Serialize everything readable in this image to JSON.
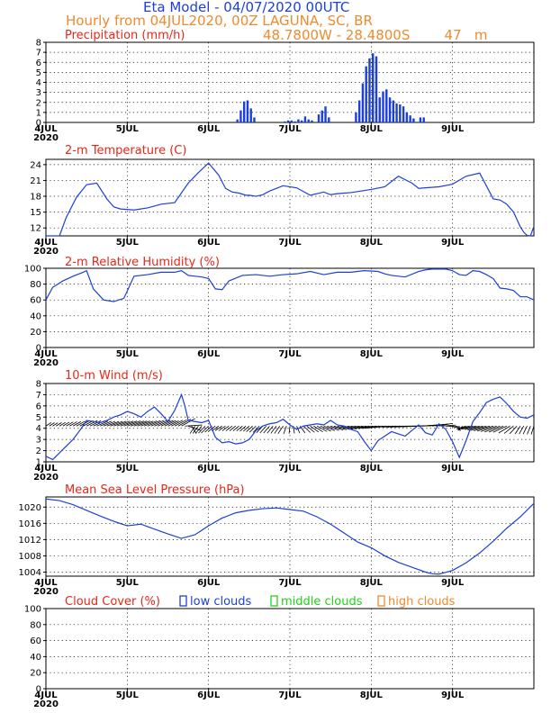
{
  "header": {
    "line1": "Eta Model - 04/07/2020 00UTC",
    "line2": "Hourly from 04JUL2020, 00Z  LAGUNA,    SC, BR",
    "line3": "48.7800W - 28.4800S        47   m"
  },
  "colors": {
    "blue": "#1c3fd9",
    "red": "#e8261a",
    "orange": "#ee8a2e",
    "green": "#22d21a",
    "purple": "#b25bd3"
  },
  "x_labels": [
    "4JUL",
    "5JUL",
    "6JUL",
    "7JUL",
    "8JUL",
    "9JUL"
  ],
  "year_label": "2020",
  "chart_data": [
    {
      "type": "bar",
      "title": "Precipitation (mm/h)",
      "x_unit": "hours since 04JUL2020 00Z",
      "ylim": [
        0,
        8
      ],
      "yticks": [
        0,
        1,
        2,
        3,
        4,
        5,
        6,
        7,
        8
      ],
      "x": [
        56,
        57,
        58,
        59,
        60,
        61,
        70,
        71,
        72,
        73,
        74,
        75,
        76,
        77,
        78,
        80,
        81,
        82,
        83,
        91,
        92,
        93,
        94,
        95,
        96,
        97,
        98,
        99,
        100,
        101,
        102,
        103,
        104,
        105,
        106,
        107,
        108,
        110,
        111
      ],
      "values": [
        0.3,
        1.2,
        2.1,
        2.2,
        1.4,
        0.5,
        0.1,
        0.2,
        0.2,
        0.1,
        0.3,
        0.2,
        0.6,
        0.3,
        0.2,
        0.8,
        1.2,
        1.6,
        0.5,
        1.0,
        2.2,
        3.9,
        5.6,
        6.4,
        6.9,
        6.6,
        2.5,
        3.1,
        3.3,
        2.5,
        2.2,
        1.9,
        1.8,
        1.6,
        1.0,
        0.7,
        0.4,
        0.5,
        0.5
      ]
    },
    {
      "type": "line",
      "title": "2-m Temperature (C)",
      "ylim": [
        10.5,
        25
      ],
      "yticks": [
        12,
        15,
        18,
        21,
        24
      ],
      "x": [
        0,
        4,
        6,
        9,
        12,
        15,
        18,
        20,
        22,
        26,
        30,
        34,
        38,
        42,
        45,
        48,
        51,
        53,
        55,
        57,
        59,
        60,
        62,
        64,
        66,
        70,
        74,
        78,
        82,
        84,
        86,
        88,
        90,
        93,
        96,
        100,
        104,
        108,
        110,
        112,
        116,
        120,
        124,
        128,
        132,
        134,
        136,
        138,
        140,
        141,
        142,
        143,
        144
      ],
      "values": [
        10.5,
        10.5,
        14,
        17.8,
        20.2,
        20.5,
        17.5,
        16,
        15.6,
        15.4,
        15.8,
        16.5,
        16.8,
        20.5,
        22.5,
        24.3,
        22,
        19.5,
        18.8,
        18.6,
        18.2,
        18.2,
        18,
        18.3,
        19,
        20,
        19.6,
        18.2,
        18.8,
        18.3,
        18.5,
        18.6,
        18.7,
        19,
        19.3,
        19.8,
        21.8,
        20.5,
        19.5,
        19.6,
        19.8,
        20.3,
        21.8,
        22.4,
        17.5,
        17.3,
        16.5,
        15,
        12.2,
        11.2,
        10.6,
        10.5,
        12.3
      ]
    },
    {
      "type": "line",
      "title": "2-m Relative Humidity (%)",
      "ylim": [
        0,
        100
      ],
      "yticks": [
        0,
        20,
        40,
        60,
        80,
        100
      ],
      "x": [
        0,
        2,
        5,
        8,
        11,
        12,
        14,
        17,
        20,
        23,
        26,
        30,
        34,
        38,
        40,
        42,
        44,
        46,
        48,
        50,
        52,
        54,
        58,
        62,
        66,
        70,
        74,
        78,
        82,
        86,
        90,
        94,
        98,
        100,
        102,
        106,
        110,
        112,
        114,
        118,
        120,
        122,
        124,
        126,
        128,
        130,
        132,
        134,
        136,
        138,
        140,
        142,
        144
      ],
      "values": [
        60,
        76,
        84,
        90,
        95,
        97,
        74,
        60,
        58,
        62,
        90,
        92,
        95,
        95,
        97,
        91,
        90,
        89,
        87,
        74,
        73,
        84,
        91,
        92,
        90,
        92,
        93,
        96,
        92,
        95,
        95,
        97,
        96,
        93,
        91,
        89,
        96,
        98,
        99,
        99,
        97,
        92,
        91,
        97,
        96,
        92,
        87,
        75,
        74,
        72,
        64,
        64,
        60
      ]
    },
    {
      "type": "line",
      "title": "10-m Wind (m/s)",
      "ylim": [
        1,
        8
      ],
      "yticks": [
        1,
        2,
        3,
        4,
        5,
        6,
        7,
        8
      ],
      "series": [
        {
          "name": "wind speed",
          "x": [
            0,
            2,
            4,
            6,
            8,
            10,
            12,
            14,
            16,
            18,
            20,
            22,
            24,
            26,
            28,
            30,
            32,
            34,
            36,
            38,
            40,
            41,
            42,
            44,
            46,
            48,
            50,
            52,
            54,
            56,
            58,
            60,
            62,
            64,
            66,
            68,
            70,
            72,
            74,
            76,
            78,
            80,
            82,
            84,
            86,
            88,
            90,
            92,
            94,
            96,
            98,
            100,
            102,
            104,
            106,
            108,
            110,
            112,
            114,
            116,
            118,
            120,
            122,
            124,
            126,
            128,
            130,
            132,
            134,
            136,
            138,
            140,
            142,
            144
          ],
          "values": [
            1.5,
            1.2,
            1.8,
            2.4,
            3.0,
            3.8,
            4.7,
            4.6,
            4.5,
            4.7,
            5.0,
            5.2,
            5.5,
            5.3,
            5.0,
            5.5,
            5.9,
            5.3,
            4.6,
            5.6,
            7.0,
            6.0,
            4.7,
            4.6,
            4.5,
            4.7,
            3.2,
            2.7,
            2.8,
            2.6,
            2.7,
            3.0,
            3.8,
            4.2,
            4.4,
            4.5,
            4.8,
            4.3,
            3.9,
            4.2,
            4.3,
            4.4,
            4.3,
            4.7,
            4.3,
            4.2,
            3.9,
            3.7,
            2.8,
            2.0,
            2.9,
            3.3,
            3.7,
            3.5,
            3.3,
            3.8,
            4.3,
            3.6,
            3.4,
            4.4,
            3.9,
            2.8,
            1.4,
            2.9,
            4.6,
            5.4,
            6.3,
            6.6,
            6.8,
            6.2,
            5.5,
            5.0,
            4.9,
            5.2
          ]
        },
        {
          "name": "wind direction (degrees, from)",
          "x": [
            0,
            10,
            18,
            26,
            34,
            40,
            44,
            48,
            52,
            56,
            62,
            70,
            76,
            84,
            90,
            100,
            108,
            116,
            120,
            124,
            126,
            132,
            136,
            140,
            144
          ],
          "values": [
            40,
            45,
            55,
            55,
            50,
            45,
            200,
            210,
            220,
            215,
            210,
            200,
            150,
            120,
            110,
            100,
            90,
            70,
            120,
            240,
            250,
            240,
            230,
            200,
            190
          ]
        }
      ]
    },
    {
      "type": "line",
      "title": "Mean Sea Level Pressure (hPa)",
      "ylim": [
        1003,
        1022.5
      ],
      "yticks": [
        1004,
        1008,
        1012,
        1016,
        1020
      ],
      "x": [
        0,
        4,
        8,
        12,
        16,
        20,
        24,
        28,
        32,
        36,
        40,
        44,
        48,
        52,
        56,
        60,
        64,
        68,
        72,
        76,
        80,
        84,
        88,
        92,
        96,
        100,
        104,
        108,
        112,
        114,
        116,
        120,
        124,
        128,
        132,
        136,
        140,
        144
      ],
      "values": [
        1022,
        1021.6,
        1020.6,
        1019.2,
        1017.8,
        1016.5,
        1015.4,
        1015.8,
        1014.6,
        1013.4,
        1012.3,
        1013.2,
        1015.4,
        1017.3,
        1018.6,
        1019.2,
        1019.6,
        1019.8,
        1019.4,
        1019,
        1017.6,
        1015.8,
        1013.6,
        1011.4,
        1010,
        1008,
        1006.4,
        1005.2,
        1004,
        1003.6,
        1003.5,
        1004.4,
        1006.3,
        1008.7,
        1011.6,
        1014.8,
        1017.6,
        1020.9
      ]
    },
    {
      "type": "bar",
      "title": "Cloud Cover (%)",
      "legend": [
        "low clouds",
        "middle clouds",
        "high clouds"
      ],
      "ylim": [
        0,
        100
      ],
      "yticks": [
        0,
        20,
        40,
        60,
        80,
        100
      ],
      "series": [
        {
          "name": "high clouds",
          "values": [
            0,
            0,
            0,
            0,
            0,
            0,
            0,
            0,
            0,
            0,
            0,
            0,
            0,
            0,
            0,
            0,
            0,
            0,
            0,
            0,
            0,
            0,
            0,
            0,
            0,
            0,
            0,
            0,
            0,
            0,
            0,
            0,
            0,
            0,
            0,
            0,
            0,
            0,
            0,
            0,
            0,
            0,
            0,
            0,
            0,
            0,
            0,
            0,
            0,
            0,
            0,
            0,
            0,
            0,
            0,
            0,
            0,
            0,
            0,
            0,
            0,
            0,
            0,
            0,
            0,
            0,
            0,
            0,
            0,
            0,
            0,
            0,
            0,
            0,
            0,
            0,
            0,
            0,
            0,
            0,
            0,
            0,
            0,
            0,
            0,
            0,
            0,
            0,
            0,
            0,
            0,
            0,
            0,
            0,
            0,
            0,
            0,
            0,
            0,
            0,
            0,
            0,
            0,
            0,
            0,
            0,
            0,
            0,
            0,
            0,
            0,
            0,
            0,
            0,
            0,
            0,
            0,
            0,
            0,
            0,
            0,
            0,
            0,
            0,
            0,
            0,
            0,
            0,
            0,
            0,
            0,
            0,
            0,
            0,
            0,
            0,
            0,
            0,
            0,
            0,
            0,
            0,
            0,
            0,
            0
          ]
        },
        {
          "name": "middle clouds",
          "values": [
            0,
            0,
            0,
            0,
            0,
            0,
            0,
            0,
            0,
            0,
            0,
            0,
            0,
            0,
            0,
            0,
            0,
            0,
            0,
            0,
            0,
            0,
            0,
            0,
            0,
            0,
            0,
            0,
            0,
            0,
            0,
            0,
            0,
            0,
            0,
            0,
            0,
            0,
            0,
            0,
            0,
            0,
            0,
            0,
            0,
            0,
            0,
            0,
            0,
            0,
            0,
            0,
            0,
            0,
            0,
            0,
            0,
            0,
            0,
            0,
            0,
            0,
            0,
            0,
            0,
            0,
            0,
            0,
            0,
            0,
            0,
            0,
            0,
            0,
            0,
            0,
            0,
            0,
            0,
            0,
            0,
            0,
            0,
            0,
            0,
            0,
            0,
            0,
            0,
            0,
            0,
            0,
            0,
            0,
            0,
            0,
            0,
            0,
            0,
            0,
            0,
            0,
            0,
            0,
            0,
            0,
            0,
            0,
            0,
            0,
            0,
            0,
            0,
            0,
            0,
            0,
            0,
            0,
            0,
            0,
            0,
            0,
            0,
            0,
            0,
            0,
            0,
            0,
            0,
            0,
            0,
            0,
            0,
            0,
            0,
            0,
            0,
            0,
            0,
            0,
            0,
            0,
            0,
            0,
            0
          ]
        },
        {
          "name": "low clouds",
          "values": [
            0,
            0,
            0,
            0,
            0,
            0,
            0,
            0,
            0,
            0,
            0,
            0,
            0,
            0,
            0,
            0,
            0,
            0,
            0,
            0,
            0,
            0,
            0,
            0,
            0,
            0,
            0,
            0,
            0,
            0,
            0,
            0,
            0,
            0,
            0,
            0,
            0,
            0,
            0,
            0,
            0,
            0,
            0,
            0,
            0,
            0,
            0,
            0,
            0,
            0,
            0,
            0,
            0,
            0,
            0,
            0,
            0,
            0,
            0,
            0,
            0,
            0,
            0,
            0,
            0,
            0,
            0,
            0,
            0,
            0,
            0,
            0,
            0,
            0,
            0,
            0,
            0,
            0,
            0,
            0,
            0,
            0,
            0,
            0,
            0,
            0,
            0,
            0,
            0,
            0,
            0,
            0,
            0,
            0,
            0,
            0,
            0,
            0,
            0,
            0,
            0,
            0,
            0,
            0,
            0,
            0,
            0,
            0,
            0,
            0,
            0,
            0,
            0,
            0,
            0,
            0,
            0,
            0,
            0,
            0,
            0,
            0,
            0,
            0,
            0,
            0,
            0,
            0,
            0,
            0,
            0,
            0,
            0,
            0,
            0,
            0,
            0,
            0,
            0,
            0,
            0,
            0,
            0,
            0,
            0
          ]
        }
      ]
    }
  ]
}
